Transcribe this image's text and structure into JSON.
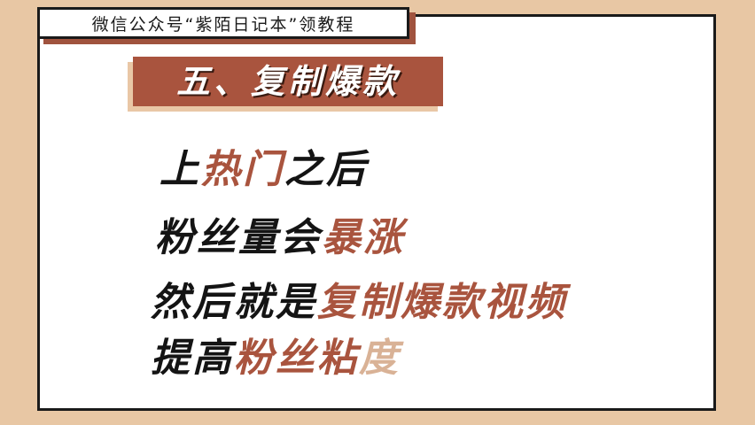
{
  "header": {
    "text": "微信公众号“紫陌日记本”领教程"
  },
  "section": {
    "title": "五、复制爆款"
  },
  "lines": [
    {
      "parts": [
        {
          "text": "上",
          "style": "dark"
        },
        {
          "text": "热门",
          "style": "accent"
        },
        {
          "text": "之后",
          "style": "dark"
        }
      ]
    },
    {
      "parts": [
        {
          "text": "粉丝量会",
          "style": "dark"
        },
        {
          "text": "暴涨",
          "style": "accent"
        }
      ]
    },
    {
      "parts": [
        {
          "text": "然后就是",
          "style": "dark"
        },
        {
          "text": "复制爆款视频",
          "style": "accent"
        }
      ]
    },
    {
      "parts": [
        {
          "text": "提高",
          "style": "dark"
        },
        {
          "text": "粉丝粘",
          "style": "accent"
        },
        {
          "text": "度",
          "style": "light"
        }
      ]
    }
  ],
  "colors": {
    "accent": "#a9543e",
    "background": "#e8c7a4",
    "panel": "#ffffff",
    "text": "#141414"
  }
}
